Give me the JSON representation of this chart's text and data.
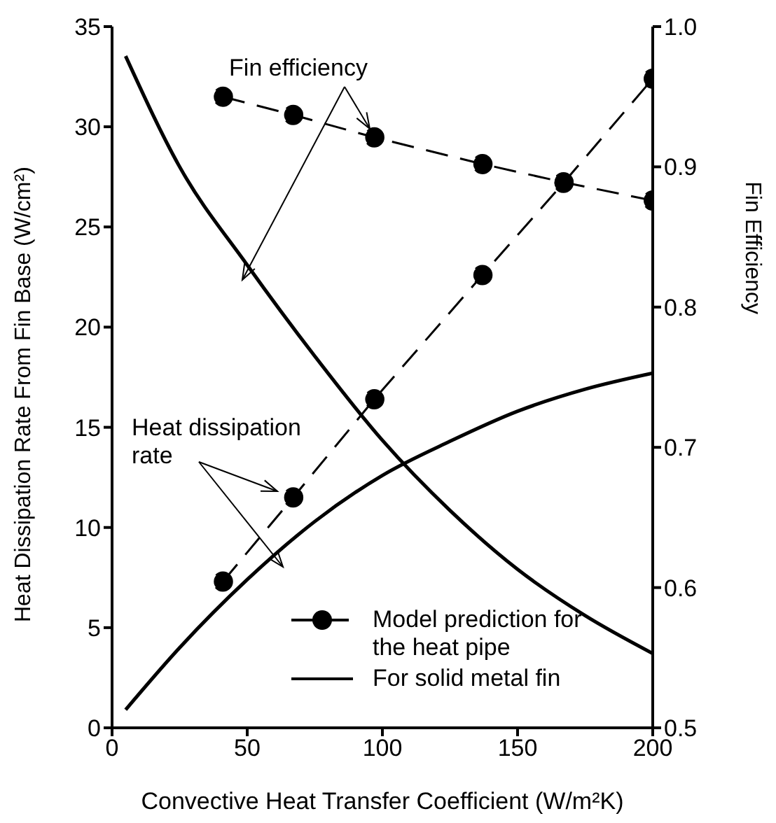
{
  "chart_data": {
    "type": "line",
    "xlabel": "Convective Heat Transfer Coefficient (W/m²K)",
    "ylabel": "Heat Dissipation Rate From Fin Base (W/cm²)",
    "y2label": "Fin Efficiency",
    "xlim": [
      0,
      200
    ],
    "xticks": [
      0,
      50,
      100,
      150,
      200
    ],
    "ylim": [
      0,
      35
    ],
    "yticks": [
      0,
      5,
      10,
      15,
      20,
      25,
      30,
      35
    ],
    "y2lim": [
      0.5,
      1.0
    ],
    "y2ticks": [
      0.5,
      0.6,
      0.7,
      0.8,
      0.9,
      {
        "value": 1.0,
        "label": "1.0"
      }
    ],
    "grid": false,
    "legend": "bottom right",
    "annotations": [
      "Fin efficiency",
      "Heat dissipation rate"
    ],
    "series": [
      {
        "name": "Model prediction for the heat pipe",
        "color": "#000000",
        "marker": "circle",
        "line_style": "dashed",
        "axis": "y",
        "x": [
          41,
          67,
          97,
          137,
          167,
          200
        ],
        "values": [
          7.3,
          11.5,
          16.4,
          22.6,
          27.2,
          32.4
        ]
      },
      {
        "color": "#000000",
        "marker": "circle",
        "line_style": "dashed",
        "axis": "y2",
        "x": [
          41,
          67,
          97,
          137,
          167,
          200
        ],
        "values": [
          0.95,
          0.937,
          0.921,
          0.902,
          0.889,
          0.876
        ]
      },
      {
        "name": "For solid metal fin",
        "color": "#000000",
        "marker": "none",
        "line_style": "solid",
        "axis": "y",
        "x": [
          5,
          25,
          50,
          75,
          100,
          125,
          150,
          175,
          200
        ],
        "values": [
          0.9,
          4,
          7.4,
          10.3,
          12.6,
          14.3,
          15.8,
          16.9,
          17.7
        ]
      },
      {
        "color": "#000000",
        "marker": "none",
        "line_style": "solid",
        "axis": "y2",
        "x": [
          5,
          25,
          50,
          75,
          100,
          125,
          150,
          175,
          200
        ],
        "values": [
          0.979,
          0.9,
          0.83,
          0.765,
          0.705,
          0.655,
          0.613,
          0.58,
          0.553
        ]
      }
    ]
  }
}
